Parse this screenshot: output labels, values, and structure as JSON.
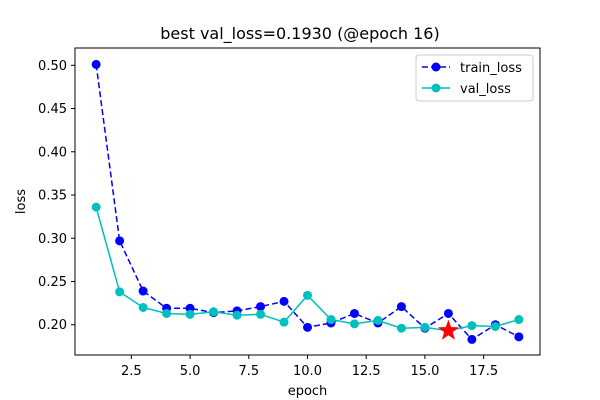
{
  "chart_data": {
    "type": "line",
    "title": "best val_loss=0.1930 (@epoch 16)",
    "xlabel": "epoch",
    "ylabel": "loss",
    "xlim": [
      0.1,
      19.9
    ],
    "ylim": [
      0.165,
      0.52
    ],
    "x": [
      1,
      2,
      3,
      4,
      5,
      6,
      7,
      8,
      9,
      10,
      11,
      12,
      13,
      14,
      15,
      16,
      17,
      18,
      19
    ],
    "xticks": [
      2.5,
      5.0,
      7.5,
      10.0,
      12.5,
      15.0,
      17.5
    ],
    "xtick_labels": [
      "2.5",
      "5.0",
      "7.5",
      "10.0",
      "12.5",
      "15.0",
      "17.5"
    ],
    "yticks": [
      0.2,
      0.25,
      0.3,
      0.35,
      0.4,
      0.45,
      0.5
    ],
    "ytick_labels": [
      "0.20",
      "0.25",
      "0.30",
      "0.35",
      "0.40",
      "0.45",
      "0.50"
    ],
    "grid": false,
    "legend_position": "top-right",
    "series": [
      {
        "name": "train_loss",
        "color": "#0000ff",
        "line_style": "dashed",
        "marker": "circle",
        "values": [
          0.501,
          0.297,
          0.239,
          0.219,
          0.219,
          0.214,
          0.216,
          0.221,
          0.227,
          0.197,
          0.202,
          0.213,
          0.202,
          0.221,
          0.196,
          0.213,
          0.183,
          0.2,
          0.186
        ]
      },
      {
        "name": "val_loss",
        "color": "#00bfbf",
        "line_style": "solid",
        "marker": "circle",
        "values": [
          0.336,
          0.238,
          0.22,
          0.213,
          0.212,
          0.215,
          0.211,
          0.212,
          0.203,
          0.234,
          0.206,
          0.201,
          0.205,
          0.196,
          0.197,
          0.193,
          0.199,
          0.198,
          0.206
        ]
      }
    ],
    "highlight": {
      "x": 16,
      "y": 0.193,
      "marker": "star",
      "color": "#ff0000"
    }
  }
}
